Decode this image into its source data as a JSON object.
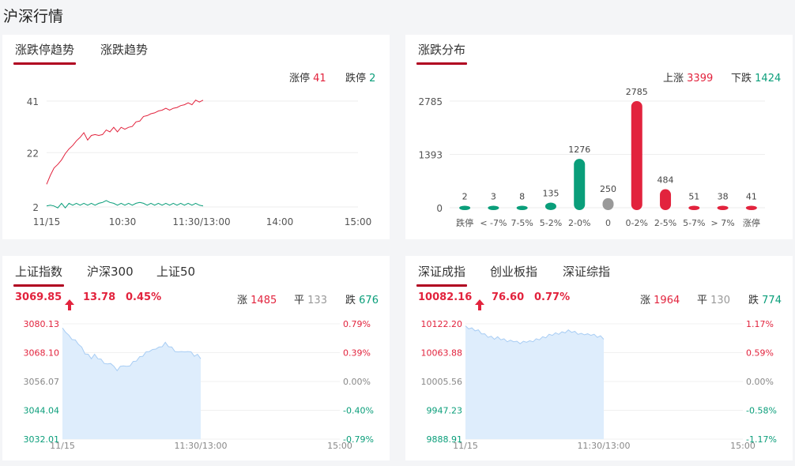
{
  "page_title": "沪深行情",
  "colors": {
    "red": "#e2233d",
    "green": "#0a9e7a",
    "gray": "#999999",
    "area": "#deedfc",
    "area_line": "#a8cdf4"
  },
  "limit_panel": {
    "tabs": [
      "涨跌停趋势",
      "涨跌趋势"
    ],
    "up_label": "涨停",
    "up_value": "41",
    "down_label": "跌停",
    "down_value": "2",
    "y_ticks": [
      "41",
      "22",
      "2"
    ],
    "x_ticks": [
      "11/15",
      "10:30",
      "11:30/13:00",
      "14:00",
      "15:00"
    ]
  },
  "dist_panel": {
    "tabs": [
      "涨跌分布"
    ],
    "rise_label": "上涨",
    "rise_value": "3399",
    "fall_label": "下跌",
    "fall_value": "1424",
    "y_ticks": [
      "2785",
      "1393",
      "0"
    ]
  },
  "sh_panel": {
    "tabs": [
      "上证指数",
      "沪深300",
      "上证50"
    ],
    "price": "3069.85",
    "change": "13.78",
    "pct": "0.45%",
    "up_label": "涨",
    "up_value": "1485",
    "flat_label": "平",
    "flat_value": "133",
    "down_label": "跌",
    "down_value": "676",
    "y_left": [
      "3080.13",
      "3068.10",
      "3056.07",
      "3044.04",
      "3032.01"
    ],
    "y_right": [
      "0.79%",
      "0.39%",
      "0.00%",
      "-0.40%",
      "-0.79%"
    ],
    "x_ticks": [
      "11/15",
      "11:30/13:00",
      "15:00"
    ]
  },
  "sz_panel": {
    "tabs": [
      "深证成指",
      "创业板指",
      "深证综指"
    ],
    "price": "10082.16",
    "change": "76.60",
    "pct": "0.77%",
    "up_label": "涨",
    "up_value": "1964",
    "flat_label": "平",
    "flat_value": "130",
    "down_label": "跌",
    "down_value": "774",
    "y_left": [
      "10122.20",
      "10063.88",
      "10005.56",
      "9947.23",
      "9888.91"
    ],
    "y_right": [
      "1.17%",
      "0.59%",
      "0.00%",
      "-0.58%",
      "-1.17%"
    ],
    "x_ticks": [
      "11/15",
      "11:30/13:00",
      "15:00"
    ]
  },
  "chart_data": [
    {
      "type": "line",
      "series": [
        {
          "name": "涨停",
          "values": [
            10,
            14,
            16,
            18,
            19,
            22,
            23,
            25,
            26,
            28,
            29,
            27,
            28,
            29,
            28,
            29,
            30,
            30,
            31,
            30,
            31,
            31,
            31,
            32,
            33,
            34,
            35,
            36,
            36,
            37,
            37,
            38,
            38,
            38,
            38,
            39,
            39,
            40,
            40,
            40,
            41,
            41,
            41
          ]
        },
        {
          "name": "跌停",
          "values": [
            2,
            3,
            2,
            2,
            3,
            2,
            3,
            3,
            3,
            3,
            3,
            3,
            3,
            3,
            3,
            4,
            4,
            4,
            3,
            3,
            3,
            3,
            3,
            3,
            3,
            4,
            3,
            3,
            3,
            3,
            3,
            3,
            3,
            3,
            3,
            3,
            3,
            3,
            3,
            3,
            3,
            3,
            2
          ]
        }
      ],
      "ylim": [
        2,
        41
      ],
      "y_ticks": [
        41,
        22,
        2
      ],
      "x_ticks": [
        "11/15",
        "10:30",
        "11:30/13:00",
        "14:00",
        "15:00"
      ]
    },
    {
      "type": "bar",
      "categories": [
        "跌停",
        "< -7%",
        "7-5%",
        "5-2%",
        "2-0%",
        "0",
        "0-2%",
        "2-5%",
        "5-7%",
        "> 7%",
        "涨停"
      ],
      "values": [
        2,
        3,
        8,
        135,
        1276,
        250,
        2785,
        484,
        51,
        38,
        41
      ],
      "bar_colors": [
        "#0a9e7a",
        "#0a9e7a",
        "#0a9e7a",
        "#0a9e7a",
        "#0a9e7a",
        "#999999",
        "#e2233d",
        "#e2233d",
        "#e2233d",
        "#e2233d",
        "#e2233d"
      ],
      "ylim": [
        0,
        2785
      ],
      "y_ticks": [
        2785,
        1393,
        0
      ]
    },
    {
      "type": "area",
      "values": [
        3078,
        3077,
        3075,
        3074,
        3073,
        3072,
        3070,
        3068,
        3067,
        3066,
        3067,
        3066,
        3065,
        3064,
        3063,
        3064,
        3062,
        3061,
        3062,
        3063,
        3062,
        3063,
        3064,
        3065,
        3066,
        3067,
        3068,
        3069,
        3069,
        3070,
        3070,
        3071,
        3072,
        3071,
        3070,
        3069,
        3068,
        3069,
        3068,
        3069,
        3068,
        3067,
        3067,
        3066
      ],
      "ylim": [
        3032.01,
        3080.13
      ],
      "y_ticks": [
        3080.13,
        3068.1,
        3056.07,
        3044.04,
        3032.01
      ]
    },
    {
      "type": "area",
      "values": [
        10116,
        10114,
        10112,
        10110,
        10108,
        10104,
        10100,
        10097,
        10095,
        10093,
        10094,
        10092,
        10090,
        10088,
        10087,
        10088,
        10085,
        10084,
        10085,
        10087,
        10086,
        10088,
        10090,
        10092,
        10094,
        10096,
        10099,
        10101,
        10102,
        10103,
        10104,
        10106,
        10108,
        10107,
        10105,
        10103,
        10101,
        10102,
        10100,
        10101,
        10099,
        10097,
        10096,
        10093
      ],
      "ylim": [
        9888.91,
        10122.2
      ],
      "y_ticks": [
        10122.2,
        10063.88,
        10005.56,
        9947.23,
        9888.91
      ]
    }
  ]
}
